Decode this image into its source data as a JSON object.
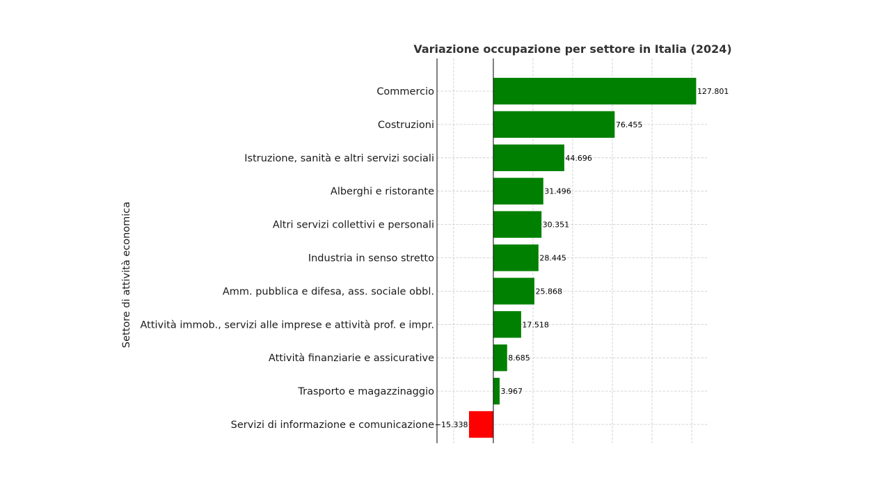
{
  "chart_data": {
    "type": "bar",
    "orientation": "horizontal",
    "title": "Variazione occupazione per settore in Italia (2024)",
    "xlabel": "",
    "ylabel": "Settore di attività economica",
    "categories": [
      "Commercio",
      "Costruzioni",
      "Istruzione, sanità e altri servizi sociali",
      "Alberghi e ristorante",
      "Altri servizi collettivi e personali",
      "Industria in senso stretto",
      "Amm. pubblica e difesa, ass. sociale obbl.",
      "Attività immob., servizi alle imprese e attività prof. e impr.",
      "Attività finanziarie e assicurative",
      "Trasporto e magazzinaggio",
      "Servizi di informazione e comunicazione"
    ],
    "values": [
      127.801,
      76.455,
      44.696,
      31.496,
      30.351,
      28.445,
      25.868,
      17.518,
      8.685,
      3.967,
      -15.338
    ],
    "value_labels": [
      "127.801",
      "76.455",
      "44.696",
      "31.496",
      "30.351",
      "28.445",
      "25.868",
      "17.518",
      "8.685",
      "3.967",
      "−15.338"
    ],
    "colors": {
      "positive": "#008000",
      "negative": "#ff0000",
      "title": "#333333"
    },
    "xlim": [
      -35.5,
      135.5
    ],
    "xticks": [
      -25,
      0,
      25,
      50,
      75,
      100,
      125
    ],
    "zero_line": true,
    "grid": true
  }
}
